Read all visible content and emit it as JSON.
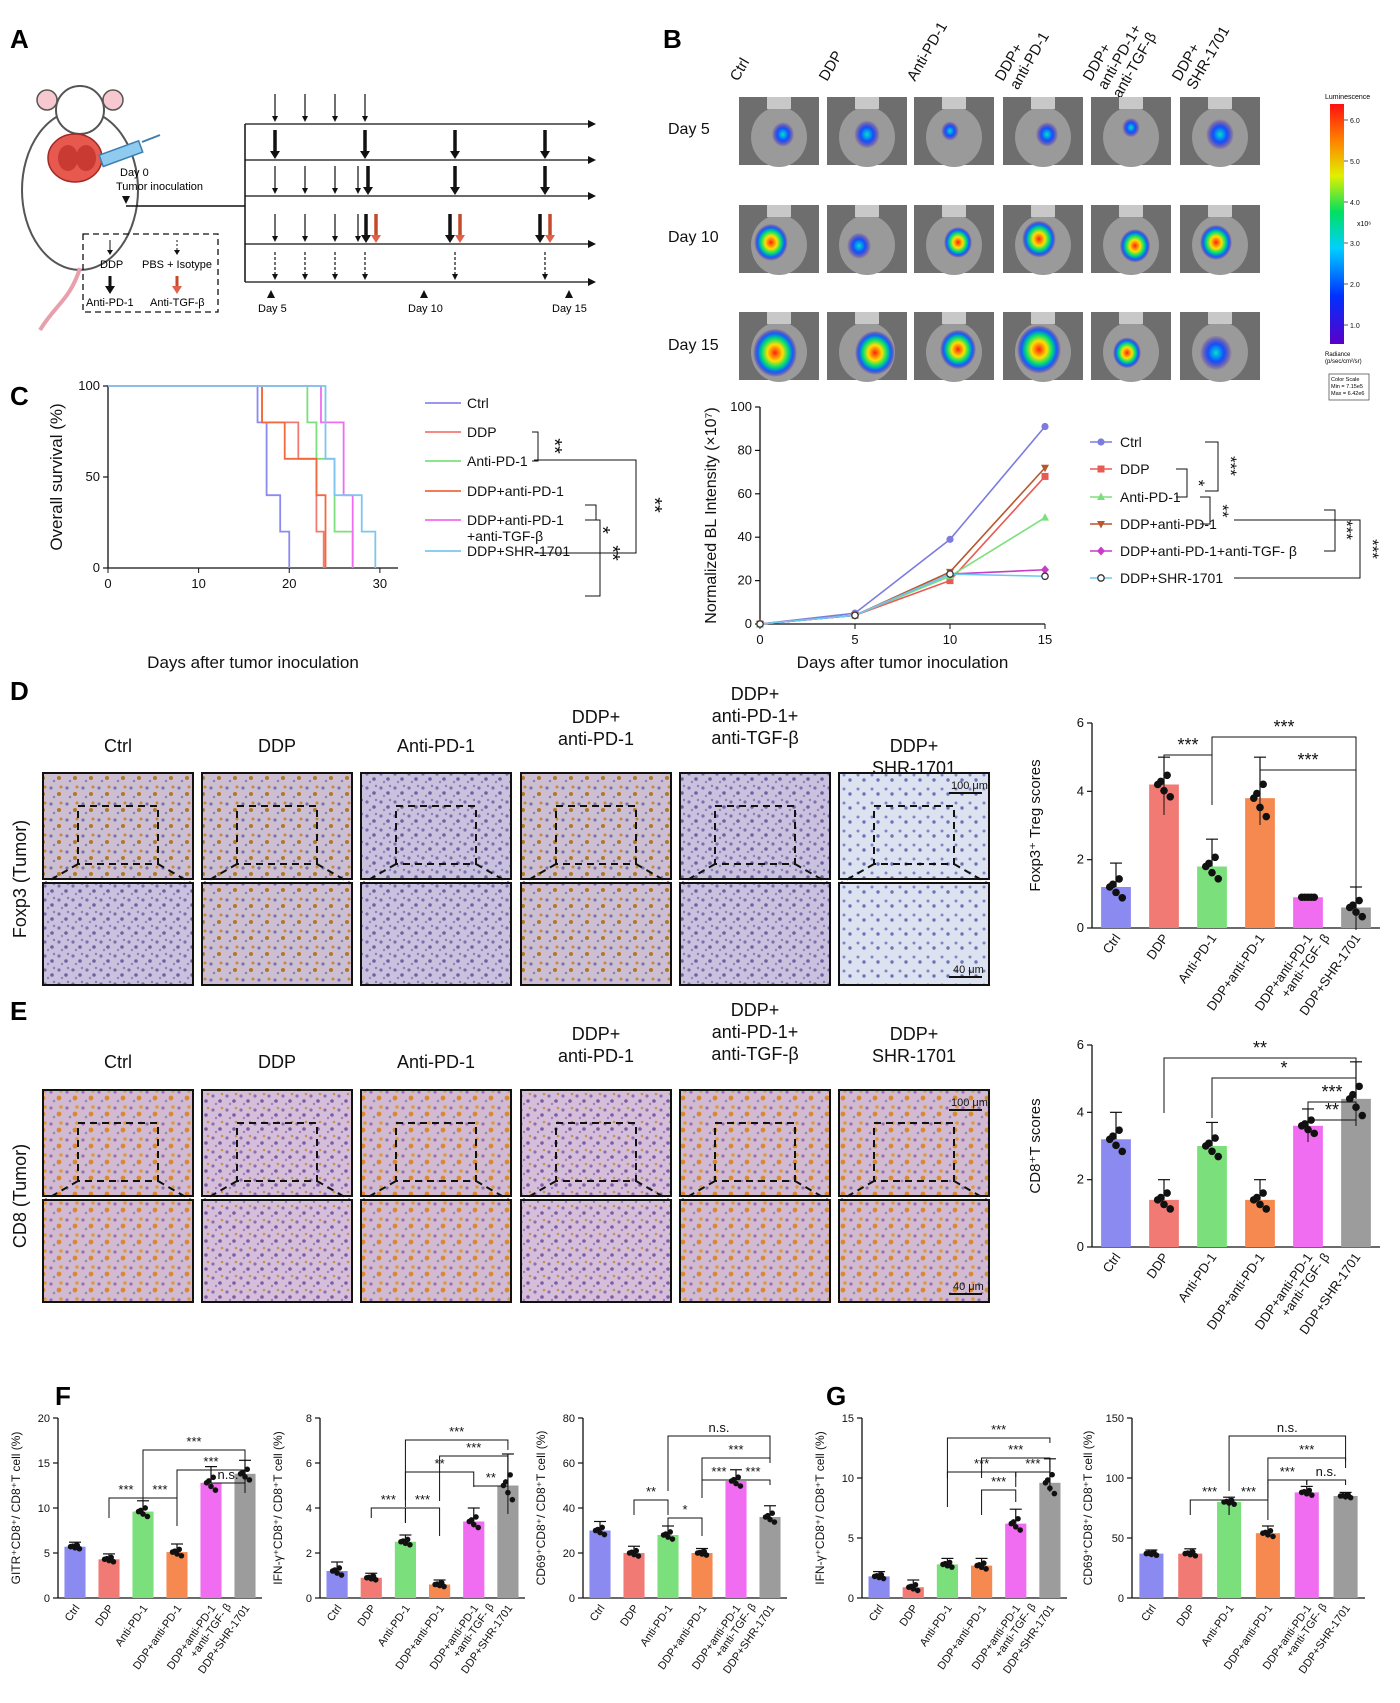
{
  "panel_labels": [
    "A",
    "B",
    "C",
    "D",
    "E",
    "F",
    "G"
  ],
  "colors": {
    "ctrl": "#8A8AF0",
    "ddp": "#F27A74",
    "antipd1": "#7BE07B",
    "ddp_antipd1": "#F5894F",
    "triple": "#F06CF0",
    "shr": "#9C9C9C",
    "ctrl_line": "#7C7CE0",
    "ddp_line": "#E85B55",
    "ddp_antipd1_line": "#B8572C",
    "triple_line": "#C83CC8",
    "shr_line": "#6FC8F0",
    "c_ddp_antipd1": "#F26A3C",
    "c_shr": "#7EC6F0",
    "tumor_red": "#E8352A"
  },
  "panelA": {
    "day0": "Day 0",
    "inoculation": "Tumor inoculation",
    "legend": {
      "ddp": "DDP",
      "pbs": "PBS + Isotype",
      "antipd1": "Anti-PD-1",
      "antitgfb": "Anti-TGF-β"
    },
    "days": [
      "Day 5",
      "Day 10",
      "Day 15"
    ]
  },
  "panelB": {
    "groups": [
      "Ctrl",
      "DDP",
      "Anti-PD-1",
      "DDP+\nanti-PD-1",
      "DDP+\nanti-PD-1+\nanti-TGF-β",
      "DDP+\nSHR-1701"
    ],
    "rows": [
      "Day 5",
      "Day 10",
      "Day 15"
    ],
    "colorbar": {
      "title": "Luminescence",
      "ticks": [
        "6.0",
        "5.0",
        "4.0",
        "3.0",
        "2.0",
        "1.0"
      ],
      "exponent": "x10⁶",
      "unit": "Radiance\n(p/sec/cm²/sr)",
      "scale_box": "Color Scale\nMin = 7.15e5\nMax = 6.42e6"
    }
  },
  "chart_data": [
    {
      "id": "C",
      "type": "line",
      "step": true,
      "xlabel": "Days after tumor inoculation",
      "ylabel": "Overall survival (%)",
      "xlim": [
        0,
        32
      ],
      "ylim": [
        0,
        100
      ],
      "xticks": [
        "0",
        "10",
        "20",
        "30"
      ],
      "yticks": [
        "0",
        "50",
        "100"
      ],
      "series": [
        {
          "name": "Ctrl",
          "color_key": "ctrl",
          "x": [
            0,
            16.5,
            17.5,
            19,
            20
          ],
          "y": [
            100,
            80,
            40,
            20,
            0
          ]
        },
        {
          "name": "DDP",
          "color_key": "ddp",
          "x": [
            0,
            17,
            21,
            23,
            23.8
          ],
          "y": [
            100,
            80,
            60,
            20,
            0
          ]
        },
        {
          "name": "Anti-PD-1",
          "color_key": "antipd1",
          "x": [
            0,
            22,
            23,
            25,
            27
          ],
          "y": [
            100,
            80,
            60,
            20,
            0
          ]
        },
        {
          "name": "DDP+anti-PD-1",
          "color_key": "c_ddp_antipd1",
          "x": [
            0,
            17,
            19.5,
            23,
            24
          ],
          "y": [
            100,
            80,
            60,
            40,
            0
          ]
        },
        {
          "name": "DDP+anti-PD-1\n+anti-TGF-β",
          "color_key": "triple",
          "x": [
            0,
            23.5,
            26,
            27
          ],
          "y": [
            100,
            80,
            40,
            0
          ]
        },
        {
          "name": "DDP+SHR-1701",
          "color_key": "c_shr",
          "x": [
            0,
            24,
            25,
            28,
            29.5
          ],
          "y": [
            100,
            60,
            40,
            20,
            0
          ]
        }
      ],
      "significance": [
        "**",
        "*",
        "**",
        "**"
      ]
    },
    {
      "id": "B-line",
      "type": "line",
      "xlabel": "Days after tumor inoculation",
      "ylabel": "Normalized BL Intensity (×10⁷)",
      "xlim": [
        0,
        15
      ],
      "ylim": [
        0,
        100
      ],
      "xticks": [
        "0",
        "5",
        "10",
        "15"
      ],
      "yticks": [
        "0",
        "20",
        "40",
        "60",
        "80",
        "100"
      ],
      "x": [
        0,
        5,
        10,
        15
      ],
      "series": [
        {
          "name": "Ctrl",
          "color_key": "ctrl_line",
          "marker": "circle",
          "values": [
            0,
            5,
            39,
            91
          ]
        },
        {
          "name": "DDP",
          "color_key": "ddp_line",
          "marker": "square",
          "values": [
            0,
            4,
            20,
            68
          ]
        },
        {
          "name": "Anti-PD-1",
          "color_key": "antipd1",
          "marker": "triangle",
          "values": [
            0,
            4,
            22,
            49
          ]
        },
        {
          "name": "DDP+anti-PD-1",
          "color_key": "ddp_antipd1_line",
          "marker": "tri-down",
          "values": [
            0,
            4,
            24,
            72
          ]
        },
        {
          "name": "DDP+anti-PD-1+anti-TGF- β",
          "color_key": "triple_line",
          "marker": "diamond",
          "values": [
            0,
            4,
            23,
            25
          ]
        },
        {
          "name": "DDP+SHR-1701",
          "color_key": "shr_line",
          "marker": "open-circle",
          "values": [
            0,
            4,
            23,
            22
          ]
        }
      ],
      "significance": [
        "*",
        "***",
        "**",
        "***",
        "***"
      ]
    },
    {
      "id": "D",
      "type": "bar",
      "ylabel": "Foxp3⁺ Treg scores",
      "ylim": [
        0,
        6
      ],
      "yticks": [
        "0",
        "2",
        "4",
        "6"
      ],
      "categories": [
        "Ctrl",
        "DDP",
        "Anti-PD-1",
        "DDP+anti-PD-1",
        "DDP+anti-PD-1\n+anti-TGF- β",
        "DDP+SHR-1701"
      ],
      "values": [
        1.2,
        4.2,
        1.8,
        3.8,
        0.9,
        0.6
      ],
      "errors": [
        0.7,
        0.8,
        0.8,
        1.2,
        0,
        0.6
      ],
      "significance": [
        "***",
        "***",
        "***"
      ]
    },
    {
      "id": "E",
      "type": "bar",
      "ylabel": "CD8⁺T scores",
      "ylim": [
        0,
        6
      ],
      "yticks": [
        "0",
        "2",
        "4",
        "6"
      ],
      "categories": [
        "Ctrl",
        "DDP",
        "Anti-PD-1",
        "DDP+anti-PD-1",
        "DDP+anti-PD-1\n+anti-TGF- β",
        "DDP+SHR-1701"
      ],
      "values": [
        3.2,
        1.4,
        3.0,
        1.4,
        3.6,
        4.4
      ],
      "errors": [
        0.8,
        0.6,
        0.7,
        0.6,
        0.5,
        1.1
      ],
      "significance": [
        "**",
        "*",
        "***",
        "**"
      ]
    },
    {
      "id": "F1",
      "type": "bar",
      "ylabel": "GITR⁺CD8⁺/ CD8⁺T cell (%)",
      "ylim": [
        0,
        20
      ],
      "yticks": [
        "0",
        "5",
        "10",
        "15",
        "20"
      ],
      "categories": [
        "Ctrl",
        "DDP",
        "Anti-PD-1",
        "DDP+anti-PD-1",
        "DDP+anti-PD-1\n+anti-TGF- β",
        "DDP+SHR-1701"
      ],
      "values": [
        5.7,
        4.3,
        9.6,
        5.1,
        12.8,
        13.8
      ],
      "errors": [
        0.5,
        0.6,
        1.2,
        0.9,
        1.8,
        1.5
      ],
      "significance": [
        "***",
        "***",
        "***",
        "***",
        "n.s."
      ]
    },
    {
      "id": "F2",
      "type": "bar",
      "ylabel": "IFN-γ⁺CD8⁺/ CD8⁺T cell (%)",
      "ylim": [
        0,
        8
      ],
      "yticks": [
        "0",
        "2",
        "4",
        "6",
        "8"
      ],
      "categories": [
        "Ctrl",
        "DDP",
        "Anti-PD-1",
        "DDP+anti-PD-1",
        "DDP+anti-PD-1\n+anti-TGF- β",
        "DDP+SHR-1701"
      ],
      "values": [
        1.2,
        0.9,
        2.5,
        0.6,
        3.4,
        5.0
      ],
      "errors": [
        0.4,
        0.2,
        0.3,
        0.2,
        0.6,
        1.4
      ],
      "significance": [
        "***",
        "***",
        "**",
        "***",
        "***",
        "**"
      ]
    },
    {
      "id": "F3",
      "type": "bar",
      "ylabel": "CD69⁺CD8⁺/ CD8⁺T cell (%)",
      "ylim": [
        0,
        80
      ],
      "yticks": [
        "0",
        "20",
        "40",
        "60",
        "80"
      ],
      "categories": [
        "Ctrl",
        "DDP",
        "Anti-PD-1",
        "DDP+anti-PD-1",
        "DDP+anti-PD-1\n+anti-TGF- β",
        "DDP+SHR-1701"
      ],
      "values": [
        30,
        20,
        28,
        20,
        52,
        36
      ],
      "errors": [
        4,
        3,
        4,
        2,
        5,
        5
      ],
      "significance": [
        "**",
        "*",
        "***",
        "***",
        "***",
        "n.s."
      ]
    },
    {
      "id": "G1",
      "type": "bar",
      "ylabel": "IFN-γ⁺CD8⁺/ CD8⁺T cell (%)",
      "ylim": [
        0,
        15
      ],
      "yticks": [
        "0",
        "5",
        "10",
        "15"
      ],
      "categories": [
        "Ctrl",
        "DDP",
        "Anti-PD-1",
        "DDP+anti-PD-1",
        "DDP+anti-PD-1\n+anti-TGF- β",
        "DDP+SHR-1701"
      ],
      "values": [
        1.8,
        0.9,
        2.8,
        2.7,
        6.2,
        9.6
      ],
      "errors": [
        0.4,
        0.6,
        0.5,
        0.6,
        1.2,
        2.0
      ],
      "significance": [
        "***",
        "***",
        "***",
        "***",
        "***"
      ]
    },
    {
      "id": "G2",
      "type": "bar",
      "ylabel": "CD69⁺CD8⁺/ CD8⁺T cell (%)",
      "ylim": [
        0,
        150
      ],
      "yticks": [
        "0",
        "50",
        "100",
        "150"
      ],
      "categories": [
        "Ctrl",
        "DDP",
        "Anti-PD-1",
        "DDP+anti-PD-1",
        "DDP+anti-PD-1\n+anti-TGF- β",
        "DDP+SHR-1701"
      ],
      "values": [
        37,
        37,
        80,
        54,
        88,
        85
      ],
      "errors": [
        3,
        4,
        4,
        6,
        5,
        3
      ],
      "significance": [
        "***",
        "***",
        "***",
        "***",
        "n.s.",
        "n.s."
      ]
    }
  ],
  "ihc": {
    "groups_D": [
      "Ctrl",
      "DDP",
      "Anti-PD-1",
      "DDP+\nanti-PD-1",
      "DDP+\nanti-PD-1+\nanti-TGF-β",
      "DDP+\nSHR-1701"
    ],
    "groups_E": [
      "Ctrl",
      "DDP",
      "Anti-PD-1",
      "DDP+\nanti-PD-1",
      "DDP+\nanti-PD-1+\nanti-TGF-β",
      "DDP+\nSHR-1701"
    ],
    "row_D": "Foxp3 (Tumor)",
    "row_E": "CD8 (Tumor)",
    "scale_top": "100 μm",
    "scale_bottom": "40 μm"
  }
}
